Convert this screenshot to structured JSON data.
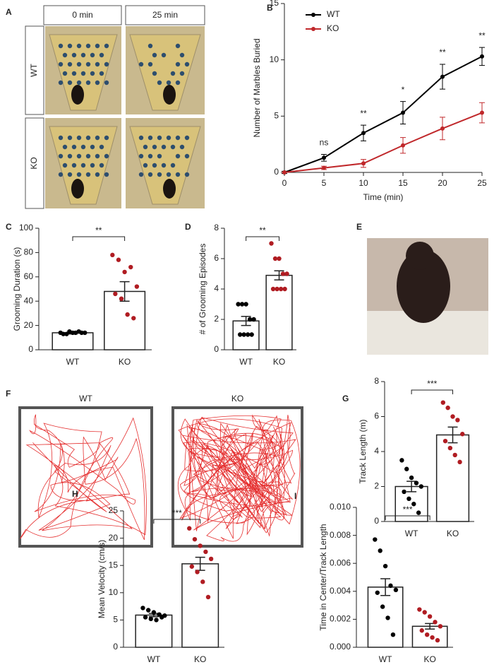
{
  "chart_data": [
    {
      "panel": "B",
      "type": "line",
      "xlabel": "Time (min)",
      "ylabel": "Number of Marbles Buried",
      "x": [
        0,
        5,
        10,
        15,
        20,
        25
      ],
      "xlim": [
        0,
        25
      ],
      "xticks": [
        0,
        5,
        10,
        15,
        20,
        25
      ],
      "ylim": [
        0,
        15
      ],
      "yticks": [
        0,
        5,
        10,
        15
      ],
      "legend": "upper left",
      "series": [
        {
          "name": "WT",
          "color": "#000000",
          "values": [
            0,
            1.3,
            3.5,
            5.3,
            8.5,
            10.3
          ],
          "errors": [
            0.1,
            0.3,
            0.7,
            1.0,
            1.1,
            0.8
          ]
        },
        {
          "name": "KO",
          "color": "#c0282b",
          "values": [
            0,
            0.4,
            0.8,
            2.4,
            3.9,
            5.3
          ],
          "errors": [
            0,
            0.15,
            0.35,
            0.7,
            1.0,
            0.9
          ]
        }
      ],
      "annotations": [
        {
          "x": 5,
          "text": "ns"
        },
        {
          "x": 10,
          "text": "**"
        },
        {
          "x": 15,
          "text": "*"
        },
        {
          "x": 20,
          "text": "**"
        },
        {
          "x": 25,
          "text": "**"
        }
      ]
    },
    {
      "panel": "C",
      "type": "bar",
      "ylabel": "Grooming Duration (s)",
      "categories": [
        "WT",
        "KO"
      ],
      "colors": [
        "#000000",
        "#b01c22"
      ],
      "values": [
        14,
        48
      ],
      "errors": [
        1,
        8
      ],
      "points": [
        [
          14,
          13,
          14,
          15,
          14,
          13,
          15,
          14,
          14
        ],
        [
          78,
          74,
          64,
          68,
          52,
          46,
          42,
          29,
          26
        ]
      ],
      "ylim": [
        0,
        100
      ],
      "yticks": [
        0,
        20,
        40,
        60,
        80,
        100
      ],
      "significance": "**"
    },
    {
      "panel": "D",
      "type": "bar",
      "ylabel": "# of Grooming Episodes",
      "categories": [
        "WT",
        "KO"
      ],
      "colors": [
        "#000000",
        "#b01c22"
      ],
      "values": [
        1.9,
        4.9
      ],
      "errors": [
        0.3,
        0.3
      ],
      "points": [
        [
          3,
          3,
          3,
          2,
          2,
          1,
          1,
          1,
          1
        ],
        [
          7,
          6,
          6,
          5,
          5,
          4,
          4,
          4,
          4
        ]
      ],
      "ylim": [
        0,
        8
      ],
      "yticks": [
        0,
        2,
        4,
        6,
        8
      ],
      "significance": "**"
    },
    {
      "panel": "G",
      "type": "bar",
      "ylabel": "Track Length (m)",
      "categories": [
        "WT",
        "KO"
      ],
      "colors": [
        "#000000",
        "#b01c22"
      ],
      "values": [
        2.0,
        4.95
      ],
      "errors": [
        0.3,
        0.45
      ],
      "points": [
        [
          3.5,
          3.0,
          2.5,
          2.2,
          2.0,
          1.7,
          1.3,
          1.0,
          0.5
        ],
        [
          6.8,
          6.5,
          6.0,
          5.8,
          5.0,
          4.6,
          4.2,
          3.8,
          3.4
        ]
      ],
      "ylim": [
        0,
        8
      ],
      "yticks": [
        0,
        2,
        4,
        6,
        8
      ],
      "significance": "***"
    },
    {
      "panel": "H",
      "type": "bar",
      "ylabel": "Mean Velocity (cm/s)",
      "categories": [
        "WT",
        "KO"
      ],
      "colors": [
        "#000000",
        "#b01c22"
      ],
      "values": [
        5.9,
        15.3
      ],
      "errors": [
        0.3,
        1.2
      ],
      "points": [
        [
          7.2,
          6.8,
          6.4,
          6.0,
          5.8,
          5.5,
          5.2,
          5.0,
          5.5
        ],
        [
          21.8,
          19.8,
          18.6,
          17.5,
          16.2,
          14.8,
          13.8,
          12.0,
          9.2
        ]
      ],
      "ylim": [
        0,
        25
      ],
      "yticks": [
        0,
        5,
        10,
        15,
        20,
        25
      ],
      "significance": "***"
    },
    {
      "panel": "I",
      "type": "bar",
      "ylabel": "Time in Center/Track Length",
      "categories": [
        "WT",
        "KO"
      ],
      "colors": [
        "#000000",
        "#b01c22"
      ],
      "values": [
        0.0043,
        0.0015
      ],
      "errors": [
        0.0006,
        0.0002
      ],
      "points": [
        [
          0.0077,
          0.0069,
          0.0058,
          0.0044,
          0.0041,
          0.0039,
          0.0029,
          0.0021,
          0.0009
        ],
        [
          0.0027,
          0.0025,
          0.0022,
          0.0018,
          0.0015,
          0.0012,
          0.0009,
          0.0007,
          0.0005
        ]
      ],
      "ylim": [
        0,
        0.01
      ],
      "yticks": [
        {
          "value": 0,
          "label": "0.000"
        },
        {
          "value": 0.002,
          "label": "0.002"
        },
        {
          "value": 0.004,
          "label": "0.004"
        },
        {
          "value": 0.006,
          "label": "0.006"
        },
        {
          "value": 0.008,
          "label": "0.008"
        },
        {
          "value": 0.01,
          "label": "0.010"
        }
      ],
      "significance": "***"
    }
  ],
  "images": [
    {
      "panel": "A",
      "columns": [
        "0 min",
        "25 min"
      ],
      "rows": [
        "WT",
        "KO"
      ]
    },
    {
      "panel": "E"
    },
    {
      "panel": "F",
      "labels": [
        "WT",
        "KO"
      ]
    }
  ]
}
